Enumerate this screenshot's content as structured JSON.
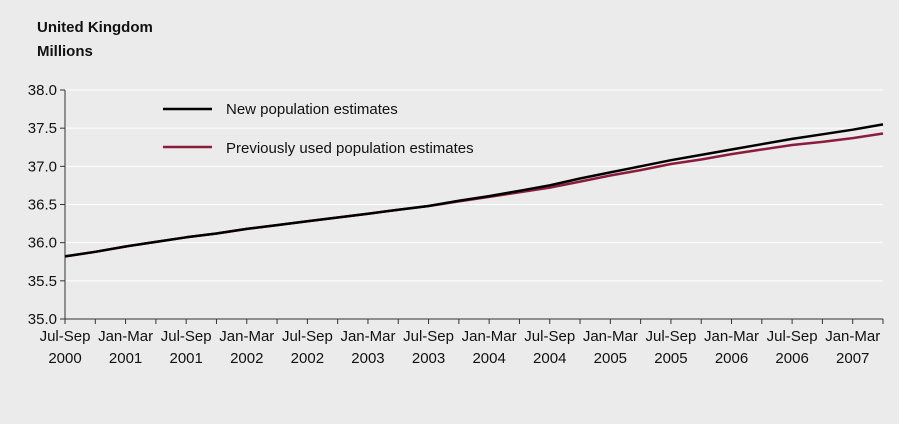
{
  "chart_data": {
    "type": "line",
    "title": "United Kingdom",
    "ylabel": "Millions",
    "xlabel": "",
    "ylim": [
      35.0,
      38.0
    ],
    "yticks": [
      "35.0",
      "35.5",
      "36.0",
      "36.5",
      "37.0",
      "37.5",
      "38.0"
    ],
    "x": [
      "Jul-Sep 2000",
      "Oct-Dec 2000",
      "Jan-Mar 2001",
      "Apr-Jun 2001",
      "Jul-Sep 2001",
      "Oct-Dec 2001",
      "Jan-Mar 2002",
      "Apr-Jun 2002",
      "Jul-Sep 2002",
      "Oct-Dec 2002",
      "Jan-Mar 2003",
      "Apr-Jun 2003",
      "Jul-Sep 2003",
      "Oct-Dec 2003",
      "Jan-Mar 2004",
      "Apr-Jun 2004",
      "Jul-Sep 2004",
      "Oct-Dec 2004",
      "Jan-Mar 2005",
      "Apr-Jun 2005",
      "Jul-Sep 2005",
      "Oct-Dec 2005",
      "Jan-Mar 2006",
      "Apr-Jun 2006",
      "Jul-Sep 2006",
      "Oct-Dec 2006",
      "Jan-Mar 2007",
      "Apr-Jun 2007"
    ],
    "tick_labels": [
      {
        "line1": "Jul-Sep",
        "line2": "2000"
      },
      {
        "line1": "Jan-Mar",
        "line2": "2001"
      },
      {
        "line1": "Jul-Sep",
        "line2": "2001"
      },
      {
        "line1": "Jan-Mar",
        "line2": "2002"
      },
      {
        "line1": "Jul-Sep",
        "line2": "2002"
      },
      {
        "line1": "Jan-Mar",
        "line2": "2003"
      },
      {
        "line1": "Jul-Sep",
        "line2": "2003"
      },
      {
        "line1": "Jan-Mar",
        "line2": "2004"
      },
      {
        "line1": "Jul-Sep",
        "line2": "2004"
      },
      {
        "line1": "Jan-Mar",
        "line2": "2005"
      },
      {
        "line1": "Jul-Sep",
        "line2": "2005"
      },
      {
        "line1": "Jan-Mar",
        "line2": "2006"
      },
      {
        "line1": "Jul-Sep",
        "line2": "2006"
      },
      {
        "line1": "Jan-Mar",
        "line2": "2007"
      }
    ],
    "series": [
      {
        "name": "New population estimates",
        "color": "#000000",
        "values": [
          35.82,
          35.88,
          35.95,
          36.01,
          36.07,
          36.12,
          36.18,
          36.23,
          36.28,
          36.33,
          36.38,
          36.43,
          36.48,
          36.55,
          36.61,
          36.68,
          36.75,
          36.84,
          36.92,
          37.0,
          37.08,
          37.15,
          37.22,
          37.29,
          37.36,
          37.42,
          37.48,
          37.55
        ]
      },
      {
        "name": "Previously used population estimates",
        "color": "#8c1c3c",
        "values": [
          35.82,
          35.88,
          35.95,
          36.01,
          36.07,
          36.12,
          36.18,
          36.23,
          36.28,
          36.33,
          36.38,
          36.43,
          36.48,
          36.54,
          36.6,
          36.66,
          36.72,
          36.8,
          36.88,
          36.95,
          37.03,
          37.09,
          37.16,
          37.22,
          37.28,
          37.32,
          37.37,
          37.43
        ]
      }
    ],
    "legend_position": "top-left",
    "grid": true,
    "gridline_color": "#ffffff",
    "plot_background": "#ebebeb"
  }
}
